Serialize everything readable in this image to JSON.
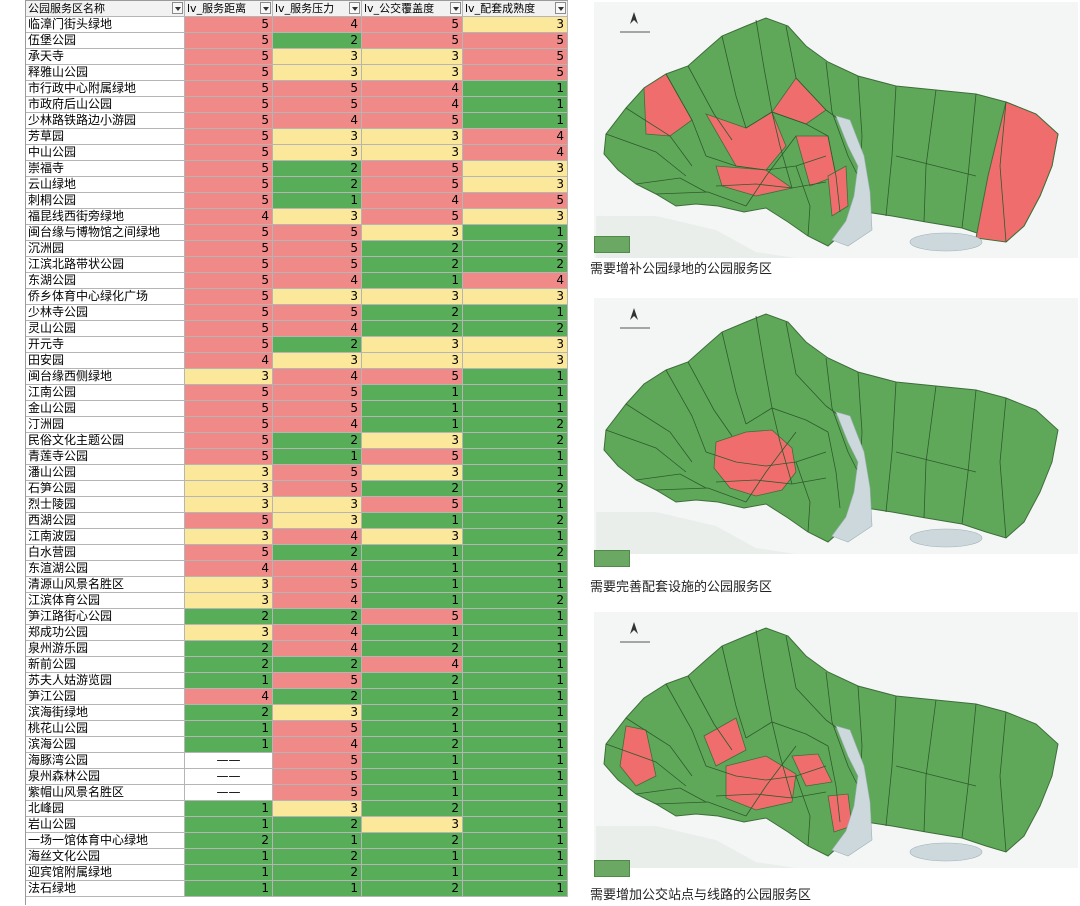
{
  "colors": {
    "red": "#f08a88",
    "yellow": "#fbe89a",
    "green": "#57ad58",
    "map_green": "#5fa85a",
    "map_red": "#ef6d6d",
    "water": "#cdd8dc"
  },
  "table": {
    "headers": [
      "公园服务区名称",
      "lv_服务距离",
      "lv_服务压力",
      "lv_公交覆盖度",
      "lv_配套成熟度"
    ],
    "rows": [
      [
        "临漳门街头绿地",
        5,
        4,
        5,
        3
      ],
      [
        "伍堡公园",
        5,
        2,
        5,
        5
      ],
      [
        "承天寺",
        5,
        3,
        3,
        5
      ],
      [
        "释雅山公园",
        5,
        3,
        3,
        5
      ],
      [
        "市行政中心附属绿地",
        5,
        5,
        4,
        1
      ],
      [
        "市政府后山公园",
        5,
        5,
        4,
        1
      ],
      [
        "少林路铁路边小游园",
        5,
        4,
        5,
        1
      ],
      [
        "芳草园",
        5,
        3,
        3,
        4
      ],
      [
        "中山公园",
        5,
        3,
        3,
        4
      ],
      [
        "崇福寺",
        5,
        2,
        5,
        3
      ],
      [
        "云山绿地",
        5,
        2,
        5,
        3
      ],
      [
        "刺桐公园",
        5,
        1,
        4,
        5
      ],
      [
        "福昆线西街旁绿地",
        4,
        3,
        5,
        3
      ],
      [
        "闽台缘与博物馆之间绿地",
        5,
        5,
        3,
        1
      ],
      [
        "沉洲园",
        5,
        5,
        2,
        2
      ],
      [
        "江滨北路带状公园",
        5,
        5,
        2,
        2
      ],
      [
        "东湖公园",
        5,
        4,
        1,
        4
      ],
      [
        "侨乡体育中心绿化广场",
        5,
        3,
        3,
        3
      ],
      [
        "少林寺公园",
        5,
        5,
        2,
        1
      ],
      [
        "灵山公园",
        5,
        4,
        2,
        2
      ],
      [
        "开元寺",
        5,
        2,
        3,
        3
      ],
      [
        "田安园",
        4,
        3,
        3,
        3
      ],
      [
        "闽台缘西侧绿地",
        3,
        4,
        5,
        1
      ],
      [
        "江南公园",
        5,
        5,
        1,
        1
      ],
      [
        "金山公园",
        5,
        5,
        1,
        1
      ],
      [
        "汀洲园",
        5,
        4,
        1,
        2
      ],
      [
        "民俗文化主题公园",
        5,
        2,
        3,
        2
      ],
      [
        "青莲寺公园",
        5,
        1,
        5,
        1
      ],
      [
        "潘山公园",
        3,
        5,
        3,
        1
      ],
      [
        "石笋公园",
        3,
        5,
        2,
        2
      ],
      [
        "烈士陵园",
        3,
        3,
        5,
        1
      ],
      [
        "西湖公园",
        5,
        3,
        1,
        2
      ],
      [
        "江南波园",
        3,
        4,
        3,
        1
      ],
      [
        "白水营园",
        5,
        2,
        1,
        2
      ],
      [
        "东渲湖公园",
        4,
        4,
        1,
        1
      ],
      [
        "清源山风景名胜区",
        3,
        5,
        1,
        1
      ],
      [
        "江滨体育公园",
        3,
        4,
        1,
        2
      ],
      [
        "笋江路街心公园",
        2,
        2,
        5,
        1
      ],
      [
        "郑成功公园",
        3,
        4,
        1,
        1
      ],
      [
        "泉州游乐园",
        2,
        4,
        2,
        1
      ],
      [
        "新前公园",
        2,
        2,
        4,
        1
      ],
      [
        "苏夫人姑游览园",
        1,
        5,
        2,
        1
      ],
      [
        "笋江公园",
        4,
        2,
        1,
        1
      ],
      [
        "滨海街绿地",
        2,
        3,
        2,
        1
      ],
      [
        "桃花山公园",
        1,
        5,
        1,
        1
      ],
      [
        "滨海公园",
        1,
        4,
        2,
        1
      ],
      [
        "海豚湾公园",
        "——",
        5,
        1,
        1
      ],
      [
        "泉州森林公园",
        "——",
        5,
        1,
        1
      ],
      [
        "紫帽山风景名胜区",
        "——",
        5,
        1,
        1
      ],
      [
        "北峰园",
        1,
        3,
        2,
        1
      ],
      [
        "岩山公园",
        1,
        2,
        3,
        1
      ],
      [
        "一场一馆体育中心绿地",
        2,
        1,
        2,
        1
      ],
      [
        "海丝文化公园",
        1,
        2,
        1,
        1
      ],
      [
        "迎宾馆附属绿地",
        1,
        2,
        1,
        1
      ],
      [
        "法石绿地",
        1,
        1,
        2,
        1
      ]
    ]
  },
  "maps": [
    {
      "caption": "需要增补公园绿地的公园服务区"
    },
    {
      "caption": "需要完善配套设施的公园服务区"
    },
    {
      "caption": "需要增加公交站点与线路的公园服务区"
    }
  ]
}
